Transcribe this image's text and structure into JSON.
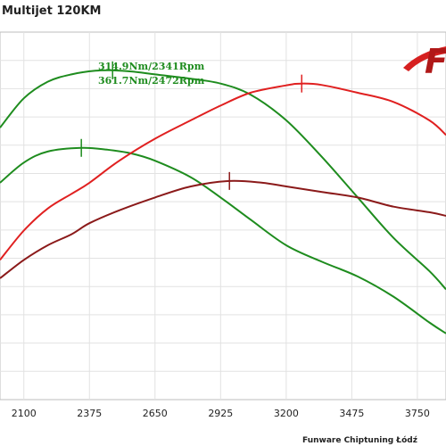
{
  "chart_data": {
    "type": "line",
    "title": "Multijet 120KM",
    "xlabel": "",
    "ylabel": "",
    "x_ticks": [
      2100,
      2375,
      2650,
      2925,
      3200,
      3475,
      3750
    ],
    "xlim": [
      2000,
      3870
    ],
    "ylim": [
      0,
      100
    ],
    "grid": true,
    "annotations": [
      "314.9Nm/2341Rpm",
      "361.7Nm/2472Rpm"
    ],
    "footer": "Funware Chiptuning Łódź",
    "logo_text": "F",
    "series": [
      {
        "color": "#1e8c1e",
        "peak_x": 2472,
        "points": [
          [
            2000,
            74
          ],
          [
            2100,
            82
          ],
          [
            2200,
            86.5
          ],
          [
            2300,
            88.5
          ],
          [
            2400,
            89.5
          ],
          [
            2472,
            89.6
          ],
          [
            2550,
            89.3
          ],
          [
            2650,
            88.5
          ],
          [
            2800,
            87.3
          ],
          [
            2925,
            86
          ],
          [
            3050,
            83
          ],
          [
            3200,
            76
          ],
          [
            3350,
            66
          ],
          [
            3500,
            55
          ],
          [
            3650,
            44
          ],
          [
            3800,
            35
          ],
          [
            3870,
            30
          ]
        ]
      },
      {
        "color": "#1e8c1e",
        "peak_x": 2341,
        "points": [
          [
            2000,
            59
          ],
          [
            2100,
            64.5
          ],
          [
            2200,
            67.5
          ],
          [
            2341,
            68.5
          ],
          [
            2450,
            68
          ],
          [
            2550,
            67
          ],
          [
            2650,
            65
          ],
          [
            2800,
            60.5
          ],
          [
            2925,
            55
          ],
          [
            3050,
            49
          ],
          [
            3200,
            42
          ],
          [
            3350,
            37.5
          ],
          [
            3500,
            33.5
          ],
          [
            3650,
            28
          ],
          [
            3800,
            21
          ],
          [
            3870,
            18
          ]
        ]
      },
      {
        "color": "#e02020",
        "peak_x": 3265,
        "points": [
          [
            2000,
            38
          ],
          [
            2100,
            46
          ],
          [
            2200,
            52
          ],
          [
            2300,
            56
          ],
          [
            2375,
            59
          ],
          [
            2500,
            65
          ],
          [
            2650,
            71
          ],
          [
            2800,
            76
          ],
          [
            2925,
            80
          ],
          [
            3050,
            83.5
          ],
          [
            3200,
            85.5
          ],
          [
            3265,
            86
          ],
          [
            3350,
            85.6
          ],
          [
            3500,
            83.5
          ],
          [
            3650,
            81
          ],
          [
            3800,
            76
          ],
          [
            3870,
            72
          ]
        ]
      },
      {
        "color": "#8b1a1a",
        "peak_x": 2962,
        "points": [
          [
            2000,
            33
          ],
          [
            2100,
            38
          ],
          [
            2200,
            42
          ],
          [
            2300,
            45
          ],
          [
            2375,
            48
          ],
          [
            2500,
            51.5
          ],
          [
            2650,
            55
          ],
          [
            2800,
            58
          ],
          [
            2962,
            59.5
          ],
          [
            3100,
            59
          ],
          [
            3200,
            58
          ],
          [
            3350,
            56.5
          ],
          [
            3500,
            55
          ],
          [
            3650,
            52.5
          ],
          [
            3800,
            51
          ],
          [
            3870,
            50
          ]
        ]
      }
    ]
  }
}
